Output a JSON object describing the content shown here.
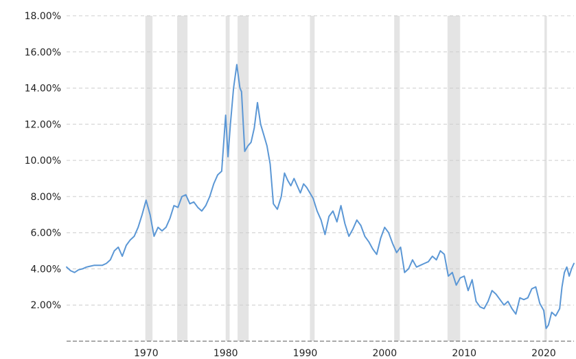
{
  "chart_data": {
    "type": "line",
    "title": "",
    "xlabel": "",
    "ylabel": "",
    "xlim": [
      1960.0,
      2023.8
    ],
    "ylim": [
      0,
      18
    ],
    "y_ticks": [
      {
        "value": 2,
        "label": "2.00%"
      },
      {
        "value": 4,
        "label": "4.00%"
      },
      {
        "value": 6,
        "label": "6.00%"
      },
      {
        "value": 8,
        "label": "8.00%"
      },
      {
        "value": 10,
        "label": "10.00%"
      },
      {
        "value": 12,
        "label": "12.00%"
      },
      {
        "value": 14,
        "label": "14.00%"
      },
      {
        "value": 16,
        "label": "16.00%"
      },
      {
        "value": 18,
        "label": "18.00%"
      }
    ],
    "x_ticks": [
      {
        "value": 1970,
        "label": "1970"
      },
      {
        "value": 1980,
        "label": "1980"
      },
      {
        "value": 1990,
        "label": "1990"
      },
      {
        "value": 2000,
        "label": "2000"
      },
      {
        "value": 2010,
        "label": "2010"
      },
      {
        "value": 2020,
        "label": "2020"
      }
    ],
    "grid": true,
    "legend": "none",
    "line_color": "#5b97d5",
    "recession_color": "#e4e4e4",
    "recessions": [
      [
        1969.9,
        1970.8
      ],
      [
        1973.9,
        1975.2
      ],
      [
        1980.0,
        1980.5
      ],
      [
        1981.5,
        1982.9
      ],
      [
        1990.6,
        1991.2
      ],
      [
        2001.2,
        2001.9
      ],
      [
        2007.9,
        2009.5
      ],
      [
        2020.1,
        2020.4
      ]
    ],
    "series": [
      {
        "x": [
          1960.0,
          1960.5,
          1961.0,
          1961.5,
          1962.0,
          1962.5,
          1963.0,
          1963.5,
          1964.0,
          1964.5,
          1965.0,
          1965.5,
          1966.0,
          1966.5,
          1967.0,
          1967.5,
          1968.0,
          1968.5,
          1969.0,
          1969.5,
          1970.0,
          1970.5,
          1971.0,
          1971.5,
          1972.0,
          1972.5,
          1973.0,
          1973.5,
          1974.0,
          1974.5,
          1975.0,
          1975.5,
          1976.0,
          1976.5,
          1977.0,
          1977.5,
          1978.0,
          1978.5,
          1979.0,
          1979.5,
          1980.0,
          1980.3,
          1980.6,
          1981.0,
          1981.4,
          1981.8,
          1982.0,
          1982.4,
          1982.8,
          1983.2,
          1983.6,
          1984.0,
          1984.4,
          1984.8,
          1985.2,
          1985.6,
          1986.0,
          1986.5,
          1987.0,
          1987.4,
          1987.8,
          1988.2,
          1988.6,
          1989.0,
          1989.4,
          1989.8,
          1990.2,
          1990.6,
          1991.0,
          1991.5,
          1992.0,
          1992.5,
          1993.0,
          1993.5,
          1994.0,
          1994.5,
          1995.0,
          1995.5,
          1996.0,
          1996.5,
          1997.0,
          1997.5,
          1998.0,
          1998.5,
          1999.0,
          1999.5,
          2000.0,
          2000.5,
          2001.0,
          2001.5,
          2002.0,
          2002.5,
          2003.0,
          2003.5,
          2004.0,
          2004.5,
          2005.0,
          2005.5,
          2006.0,
          2006.5,
          2007.0,
          2007.5,
          2008.0,
          2008.5,
          2009.0,
          2009.5,
          2010.0,
          2010.5,
          2011.0,
          2011.5,
          2012.0,
          2012.5,
          2013.0,
          2013.5,
          2014.0,
          2014.5,
          2015.0,
          2015.5,
          2016.0,
          2016.5,
          2017.0,
          2017.5,
          2018.0,
          2018.5,
          2019.0,
          2019.5,
          2020.0,
          2020.3,
          2020.6,
          2021.0,
          2021.5,
          2022.0,
          2022.3,
          2022.6,
          2022.9,
          2023.2,
          2023.5,
          2023.8
        ],
        "y": [
          4.1,
          3.9,
          3.8,
          3.95,
          4.0,
          4.1,
          4.15,
          4.2,
          4.2,
          4.2,
          4.3,
          4.5,
          5.0,
          5.2,
          4.7,
          5.3,
          5.6,
          5.8,
          6.3,
          7.0,
          7.8,
          7.0,
          5.8,
          6.3,
          6.1,
          6.3,
          6.8,
          7.5,
          7.4,
          8.0,
          8.1,
          7.6,
          7.7,
          7.4,
          7.2,
          7.5,
          8.0,
          8.7,
          9.2,
          9.4,
          12.5,
          10.2,
          12.0,
          14.0,
          15.3,
          14.0,
          13.8,
          10.5,
          10.8,
          11.0,
          11.8,
          13.2,
          12.0,
          11.4,
          10.8,
          9.8,
          7.6,
          7.3,
          8.0,
          9.3,
          8.9,
          8.6,
          9.0,
          8.6,
          8.2,
          8.7,
          8.5,
          8.2,
          7.9,
          7.2,
          6.7,
          5.9,
          6.9,
          7.2,
          6.6,
          7.5,
          6.5,
          5.8,
          6.2,
          6.7,
          6.4,
          5.8,
          5.5,
          5.1,
          4.8,
          5.7,
          6.3,
          6.0,
          5.4,
          4.9,
          5.2,
          3.8,
          4.0,
          4.5,
          4.1,
          4.2,
          4.3,
          4.4,
          4.7,
          4.5,
          5.0,
          4.8,
          3.6,
          3.8,
          3.1,
          3.5,
          3.6,
          2.8,
          3.4,
          2.2,
          1.9,
          1.8,
          2.2,
          2.8,
          2.6,
          2.3,
          2.0,
          2.2,
          1.8,
          1.5,
          2.4,
          2.3,
          2.4,
          2.9,
          3.0,
          2.1,
          1.7,
          0.7,
          0.9,
          1.6,
          1.4,
          1.8,
          3.0,
          3.8,
          4.1,
          3.6,
          4.0,
          4.3
        ]
      }
    ]
  }
}
